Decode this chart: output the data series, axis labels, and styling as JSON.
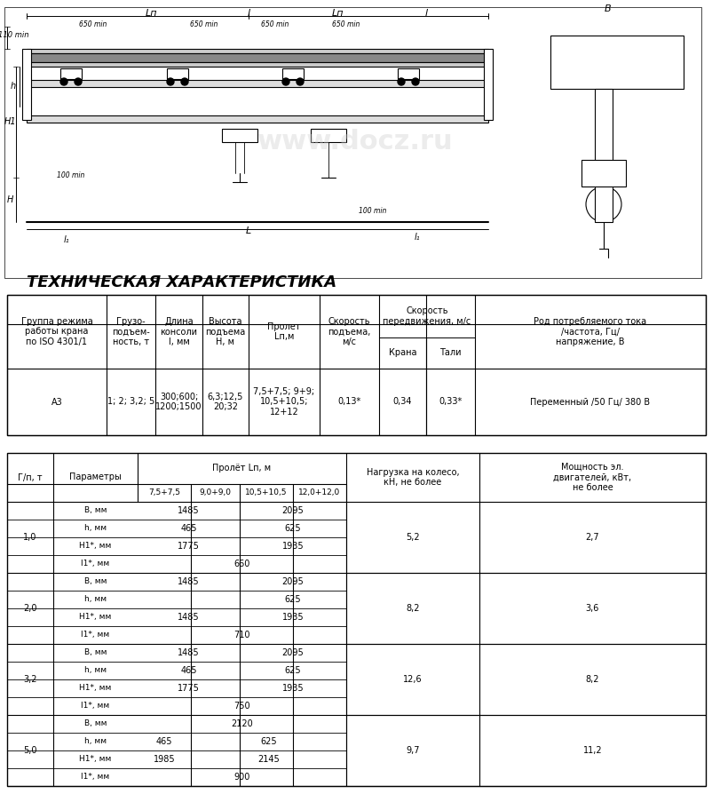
{
  "title": "ТЕХНИЧЕСКАЯ ХАРАКТЕРИСТИКА",
  "bg_color": "#ffffff",
  "table1_headers": [
    [
      "Группа режима\nработы крана\nпо ISO 4301/1",
      "Грузо-\nподъем-\nность, т",
      "Длина\nконсоли\nl, мм",
      "Высота\nподъема\nН, м",
      "Пролет\nLп,м",
      "Скорость\nподъема,\nм/с",
      "Скорость\nпередвижения, м/с",
      "",
      "Род потребляемого тока\n/частота, Гц/\nнапряжение, В"
    ],
    [
      "",
      "",
      "",
      "",
      "",
      "",
      "Крана",
      "Тали",
      ""
    ]
  ],
  "table1_data": [
    [
      "А3",
      "1; 2; 3,2; 5",
      "300;600;\n1200;1500",
      "6,3;12,5\n20;32",
      "7,5+7,5; 9+9;\n10,5+10,5;\n12+12",
      "0,13*",
      "0,34",
      "0,33*",
      "Переменный /50 Гц/ 380 В"
    ]
  ],
  "table2_col_headers": [
    "Г/п, т",
    "Параметры",
    "7,5+7,5",
    "9,0+9,0",
    "10,5+10,5",
    "12,0+12,0",
    "Нагрузка на колесо,\nкН, не более",
    "Мощность эл.\nдвигателей, кВт,\nне более"
  ],
  "table2_span_header": "Пролёт Lп, м",
  "table2_rows": [
    {
      "gp": "1,0",
      "params": [
        "В, мм",
        "h, мм",
        "H1*, мм",
        "l1*, мм"
      ],
      "vals": [
        [
          "1485",
          "",
          "2095",
          ""
        ],
        [
          "",
          "",
          "",
          ""
        ],
        [
          "1775",
          "",
          "1935",
          ""
        ],
        [
          "",
          "660",
          "",
          ""
        ]
      ],
      "nagruzka": "5,2",
      "moshnost": "2,7"
    },
    {
      "gp": "2,0",
      "params": [
        "В, мм",
        "h, мм",
        "H1*, мм",
        "l1*, мм"
      ],
      "vals": [
        [
          "1485",
          "",
          "2095",
          ""
        ],
        [
          "",
          "",
          "625",
          ""
        ],
        [
          "1485",
          "",
          "1935",
          ""
        ],
        [
          "",
          "710",
          "",
          ""
        ]
      ],
      "nagruzka": "8,2",
      "moshnost": "3,6"
    },
    {
      "gp": "3,2",
      "params": [
        "В, мм",
        "h, мм",
        "H1*, мм",
        "l1*, мм"
      ],
      "vals": [
        [
          "1485",
          "",
          "2095",
          ""
        ],
        [
          "465",
          "",
          "625",
          ""
        ],
        [
          "1775",
          "",
          "1935",
          ""
        ],
        [
          "",
          "750",
          "",
          ""
        ]
      ],
      "nagruzka": "12,6",
      "moshnost": "8,2"
    },
    {
      "gp": "5,0",
      "params": [
        "В, мм",
        "h, мм",
        "H1*, мм",
        "l1*, мм"
      ],
      "vals": [
        [
          "",
          "2120",
          "",
          ""
        ],
        [
          "465",
          "",
          "625",
          ""
        ],
        [
          "1985",
          "",
          "2145",
          ""
        ],
        [
          "",
          "900",
          "",
          ""
        ]
      ],
      "nagruzka": "9,7",
      "moshnost": "11,2"
    }
  ],
  "watermark_text": "www.docz.ru",
  "font_size_title": 13,
  "font_size_table": 7.5,
  "font_size_small": 7
}
